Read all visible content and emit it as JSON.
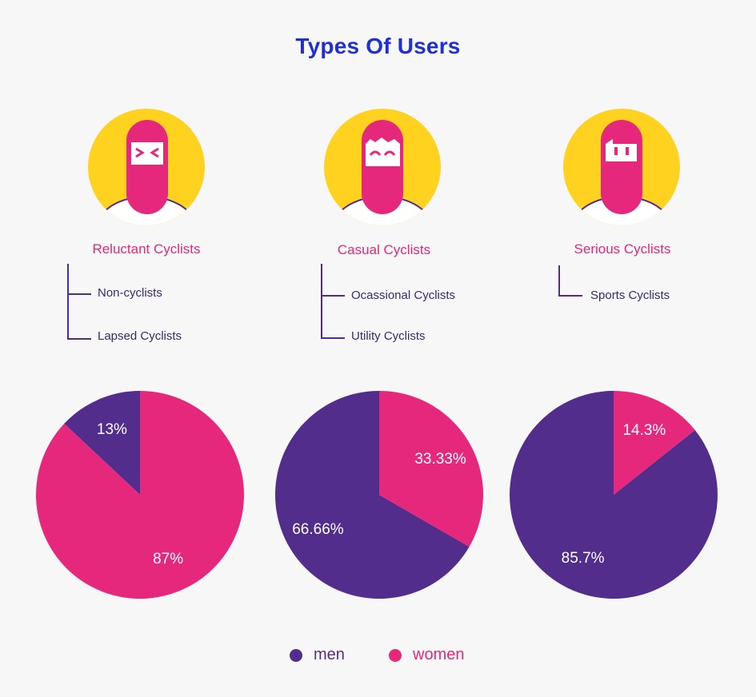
{
  "title": "Types Of Users",
  "colors": {
    "men": "#522d8b",
    "women": "#e5287c",
    "title": "#1f2fd1",
    "avatar_bg": "#ffd21f"
  },
  "columns": [
    {
      "title": "Reluctant Cyclists",
      "subtypes": [
        "Non-cyclists",
        "Lapsed Cyclists"
      ]
    },
    {
      "title": "Casual Cyclists",
      "subtypes": [
        "Ocassional Cyclists",
        "Utility Cyclists"
      ]
    },
    {
      "title": "Serious Cyclists",
      "subtypes": [
        "Sports Cyclists"
      ]
    }
  ],
  "chart_data": [
    {
      "type": "pie",
      "title": "Reluctant Cyclists",
      "slices": [
        {
          "name": "men",
          "value": 13,
          "label": "13%"
        },
        {
          "name": "women",
          "value": 87,
          "label": "87%"
        }
      ]
    },
    {
      "type": "pie",
      "title": "Casual Cyclists",
      "slices": [
        {
          "name": "men",
          "value": 66.66,
          "label": "66.66%"
        },
        {
          "name": "women",
          "value": 33.33,
          "label": "33.33%"
        }
      ]
    },
    {
      "type": "pie",
      "title": "Serious Cyclists",
      "slices": [
        {
          "name": "men",
          "value": 85.7,
          "label": "85.7%"
        },
        {
          "name": "women",
          "value": 14.3,
          "label": "14.3%"
        }
      ]
    }
  ],
  "legend": [
    {
      "name": "men",
      "label": "men"
    },
    {
      "name": "women",
      "label": "women"
    }
  ]
}
